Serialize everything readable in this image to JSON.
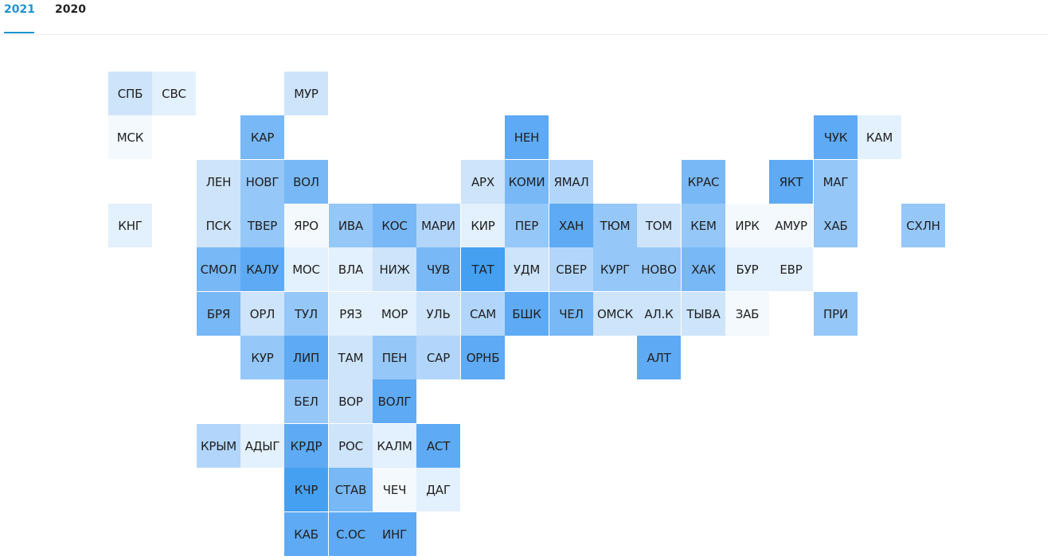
{
  "tabs": [
    {
      "label": "2021",
      "active": true
    },
    {
      "label": "2020",
      "active": false
    }
  ],
  "colors": {
    "accent": "#1d93d2",
    "l0": "#f4f9fe",
    "l1": "#e3f0fd",
    "l2": "#cde4fb",
    "l3": "#b2d6fb",
    "l4": "#95c7f9",
    "l5": "#78b8f6",
    "l6": "#5eaaf4",
    "l7": "#45a0f2"
  },
  "regions": [
    {
      "label": "СПБ",
      "row": 0,
      "col": 0,
      "level": 2
    },
    {
      "label": "СВС",
      "row": 0,
      "col": 1,
      "level": 1
    },
    {
      "label": "МУР",
      "row": 0,
      "col": 4,
      "level": 2
    },
    {
      "label": "МСК",
      "row": 1,
      "col": 0,
      "level": 0
    },
    {
      "label": "КАР",
      "row": 1,
      "col": 3,
      "level": 5
    },
    {
      "label": "НЕН",
      "row": 1,
      "col": 9,
      "level": 6
    },
    {
      "label": "ЧУК",
      "row": 1,
      "col": 16,
      "level": 6
    },
    {
      "label": "КАМ",
      "row": 1,
      "col": 17,
      "level": 1
    },
    {
      "label": "ЛЕН",
      "row": 2,
      "col": 2,
      "level": 2
    },
    {
      "label": "НОВГ",
      "row": 2,
      "col": 3,
      "level": 4
    },
    {
      "label": "ВОЛ",
      "row": 2,
      "col": 4,
      "level": 5
    },
    {
      "label": "АРХ",
      "row": 2,
      "col": 8,
      "level": 2
    },
    {
      "label": "КОМИ",
      "row": 2,
      "col": 9,
      "level": 5
    },
    {
      "label": "ЯМАЛ",
      "row": 2,
      "col": 10,
      "level": 3
    },
    {
      "label": "КРАС",
      "row": 2,
      "col": 13,
      "level": 5
    },
    {
      "label": "ЯКТ",
      "row": 2,
      "col": 15,
      "level": 6
    },
    {
      "label": "МАГ",
      "row": 2,
      "col": 16,
      "level": 4
    },
    {
      "label": "КНГ",
      "row": 3,
      "col": 0,
      "level": 1
    },
    {
      "label": "ПСК",
      "row": 3,
      "col": 2,
      "level": 2
    },
    {
      "label": "ТВЕР",
      "row": 3,
      "col": 3,
      "level": 4
    },
    {
      "label": "ЯРО",
      "row": 3,
      "col": 4,
      "level": 0
    },
    {
      "label": "ИВА",
      "row": 3,
      "col": 5,
      "level": 4
    },
    {
      "label": "КОС",
      "row": 3,
      "col": 6,
      "level": 5
    },
    {
      "label": "МАРИ",
      "row": 3,
      "col": 7,
      "level": 3
    },
    {
      "label": "КИР",
      "row": 3,
      "col": 8,
      "level": 1
    },
    {
      "label": "ПЕР",
      "row": 3,
      "col": 9,
      "level": 4
    },
    {
      "label": "ХАН",
      "row": 3,
      "col": 10,
      "level": 6
    },
    {
      "label": "ТЮМ",
      "row": 3,
      "col": 11,
      "level": 4
    },
    {
      "label": "ТОМ",
      "row": 3,
      "col": 12,
      "level": 2
    },
    {
      "label": "КЕМ",
      "row": 3,
      "col": 13,
      "level": 4
    },
    {
      "label": "ИРК",
      "row": 3,
      "col": 14,
      "level": 0
    },
    {
      "label": "АМУР",
      "row": 3,
      "col": 15,
      "level": 0
    },
    {
      "label": "ХАБ",
      "row": 3,
      "col": 16,
      "level": 4
    },
    {
      "label": "СХЛН",
      "row": 3,
      "col": 18,
      "level": 4
    },
    {
      "label": "СМОЛ",
      "row": 4,
      "col": 2,
      "level": 5
    },
    {
      "label": "КАЛУ",
      "row": 4,
      "col": 3,
      "level": 6
    },
    {
      "label": "МОС",
      "row": 4,
      "col": 4,
      "level": 1
    },
    {
      "label": "ВЛА",
      "row": 4,
      "col": 5,
      "level": 1
    },
    {
      "label": "НИЖ",
      "row": 4,
      "col": 6,
      "level": 2
    },
    {
      "label": "ЧУВ",
      "row": 4,
      "col": 7,
      "level": 5
    },
    {
      "label": "ТАТ",
      "row": 4,
      "col": 8,
      "level": 7
    },
    {
      "label": "УДМ",
      "row": 4,
      "col": 9,
      "level": 2
    },
    {
      "label": "СВЕР",
      "row": 4,
      "col": 10,
      "level": 3
    },
    {
      "label": "КУРГ",
      "row": 4,
      "col": 11,
      "level": 4
    },
    {
      "label": "НОВО",
      "row": 4,
      "col": 12,
      "level": 4
    },
    {
      "label": "ХАК",
      "row": 4,
      "col": 13,
      "level": 5
    },
    {
      "label": "БУР",
      "row": 4,
      "col": 14,
      "level": 1
    },
    {
      "label": "ЕВР",
      "row": 4,
      "col": 15,
      "level": 1
    },
    {
      "label": "БРЯ",
      "row": 5,
      "col": 2,
      "level": 5
    },
    {
      "label": "ОРЛ",
      "row": 5,
      "col": 3,
      "level": 2
    },
    {
      "label": "ТУЛ",
      "row": 5,
      "col": 4,
      "level": 4
    },
    {
      "label": "РЯЗ",
      "row": 5,
      "col": 5,
      "level": 1
    },
    {
      "label": "МОР",
      "row": 5,
      "col": 6,
      "level": 1
    },
    {
      "label": "УЛЬ",
      "row": 5,
      "col": 7,
      "level": 2
    },
    {
      "label": "САМ",
      "row": 5,
      "col": 8,
      "level": 3
    },
    {
      "label": "БШК",
      "row": 5,
      "col": 9,
      "level": 6
    },
    {
      "label": "ЧЕЛ",
      "row": 5,
      "col": 10,
      "level": 5
    },
    {
      "label": "ОМСК",
      "row": 5,
      "col": 11,
      "level": 2
    },
    {
      "label": "АЛ.К",
      "row": 5,
      "col": 12,
      "level": 2
    },
    {
      "label": "ТЫВА",
      "row": 5,
      "col": 13,
      "level": 2
    },
    {
      "label": "ЗАБ",
      "row": 5,
      "col": 14,
      "level": 0
    },
    {
      "label": "ПРИ",
      "row": 5,
      "col": 16,
      "level": 4
    },
    {
      "label": "КУР",
      "row": 6,
      "col": 3,
      "level": 4
    },
    {
      "label": "ЛИП",
      "row": 6,
      "col": 4,
      "level": 6
    },
    {
      "label": "ТАМ",
      "row": 6,
      "col": 5,
      "level": 2
    },
    {
      "label": "ПЕН",
      "row": 6,
      "col": 6,
      "level": 4
    },
    {
      "label": "САР",
      "row": 6,
      "col": 7,
      "level": 3
    },
    {
      "label": "ОРНБ",
      "row": 6,
      "col": 8,
      "level": 6
    },
    {
      "label": "АЛТ",
      "row": 6,
      "col": 12,
      "level": 6
    },
    {
      "label": "БЕЛ",
      "row": 7,
      "col": 4,
      "level": 4
    },
    {
      "label": "ВОР",
      "row": 7,
      "col": 5,
      "level": 2
    },
    {
      "label": "ВОЛГ",
      "row": 7,
      "col": 6,
      "level": 6
    },
    {
      "label": "КРЫМ",
      "row": 8,
      "col": 2,
      "level": 3
    },
    {
      "label": "АДЫГ",
      "row": 8,
      "col": 3,
      "level": 1
    },
    {
      "label": "КРДР",
      "row": 8,
      "col": 4,
      "level": 6
    },
    {
      "label": "РОС",
      "row": 8,
      "col": 5,
      "level": 2
    },
    {
      "label": "КАЛМ",
      "row": 8,
      "col": 6,
      "level": 1
    },
    {
      "label": "АСТ",
      "row": 8,
      "col": 7,
      "level": 6
    },
    {
      "label": "КЧР",
      "row": 9,
      "col": 4,
      "level": 7
    },
    {
      "label": "СТАВ",
      "row": 9,
      "col": 5,
      "level": 5
    },
    {
      "label": "ЧЕЧ",
      "row": 9,
      "col": 6,
      "level": 0
    },
    {
      "label": "ДАГ",
      "row": 9,
      "col": 7,
      "level": 1
    },
    {
      "label": "КАБ",
      "row": 10,
      "col": 4,
      "level": 6
    },
    {
      "label": "С.ОС",
      "row": 10,
      "col": 5,
      "level": 6
    },
    {
      "label": "ИНГ",
      "row": 10,
      "col": 6,
      "level": 6
    }
  ]
}
